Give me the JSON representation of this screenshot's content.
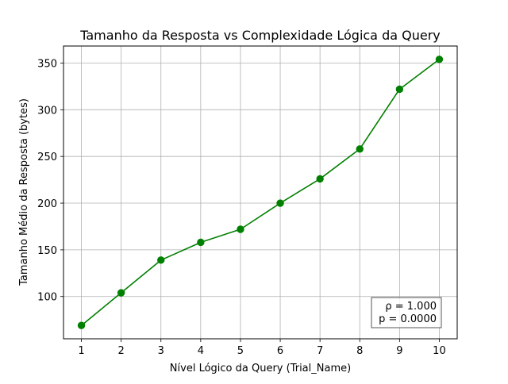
{
  "chart_data": {
    "type": "line",
    "title": "Tamanho da Resposta vs Complexidade Lógica da Query",
    "xlabel": "Nível Lógico da Query (Trial_Name)",
    "ylabel": "Tamanho Médio da Resposta (bytes)",
    "x": [
      1,
      2,
      3,
      4,
      5,
      6,
      7,
      8,
      9,
      10
    ],
    "series": [
      {
        "values": [
          69,
          104,
          139,
          158,
          172,
          200,
          226,
          258,
          322,
          354
        ],
        "color": "#008000",
        "marker": "circle"
      }
    ],
    "xlim": [
      0.55,
      10.45
    ],
    "ylim": [
      54.75,
      368.25
    ],
    "xticks": [
      1,
      2,
      3,
      4,
      5,
      6,
      7,
      8,
      9,
      10
    ],
    "yticks": [
      100,
      150,
      200,
      250,
      300,
      350
    ],
    "grid": true,
    "annotation": {
      "lines": [
        "ρ = 1.000",
        "p = 0.0000"
      ],
      "placement": "bottom-right"
    }
  }
}
